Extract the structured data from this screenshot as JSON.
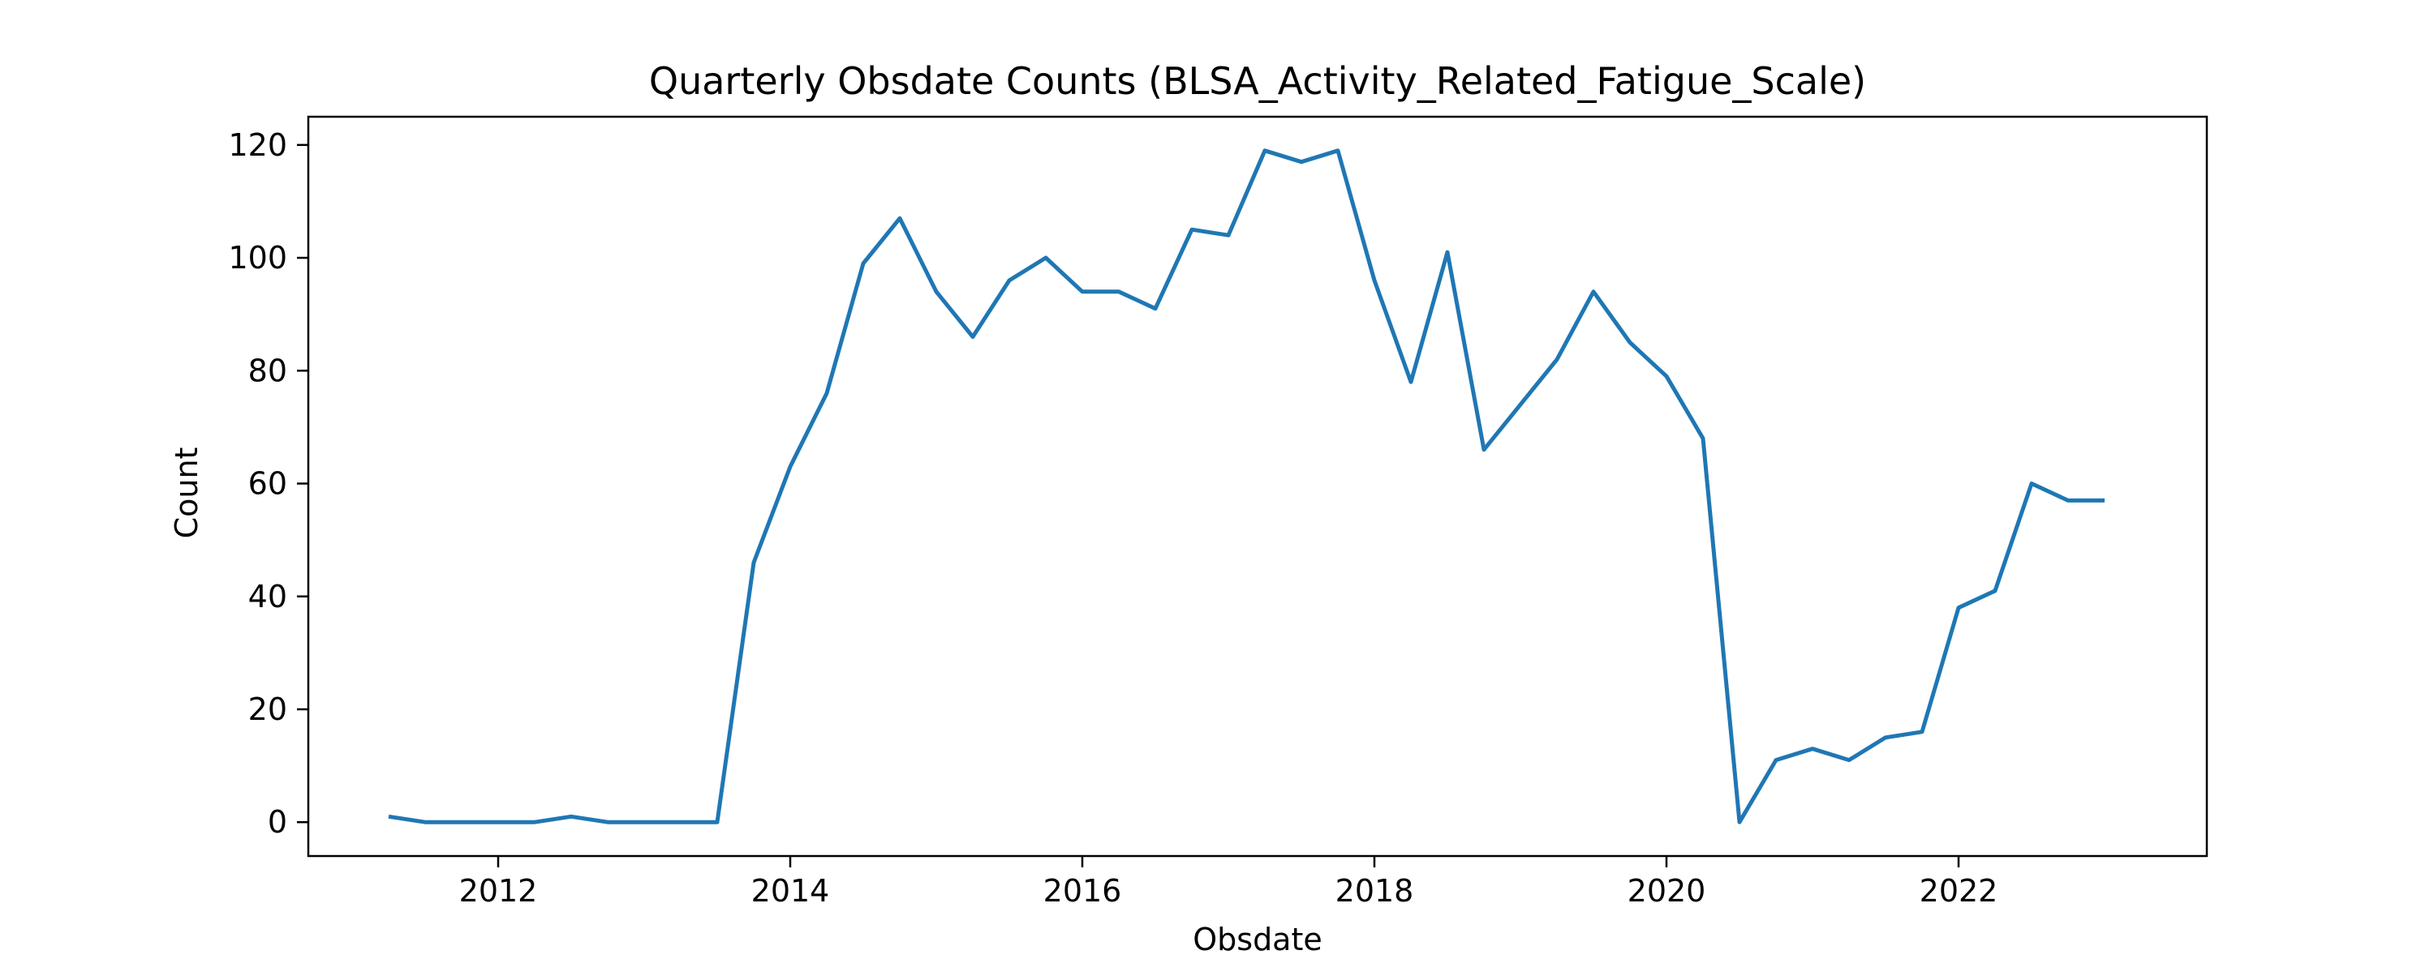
{
  "chart_data": {
    "type": "line",
    "title": "Quarterly Obsdate Counts (BLSA_Activity_Related_Fatigue_Scale)",
    "xlabel": "Obsdate",
    "ylabel": "Count",
    "x_tick_labels": [
      "2012",
      "2014",
      "2016",
      "2018",
      "2020",
      "2022"
    ],
    "y_tick_labels": [
      "0",
      "20",
      "40",
      "60",
      "80",
      "100",
      "120"
    ],
    "xlim": [
      2010.7,
      2023.7
    ],
    "ylim": [
      -6,
      125
    ],
    "grid": false,
    "legend": "none",
    "series": [
      {
        "color": "#1f77b4",
        "x": [
          "2011-04-01",
          "2011-07-01",
          "2011-10-01",
          "2012-01-01",
          "2012-04-01",
          "2012-07-01",
          "2012-10-01",
          "2013-01-01",
          "2013-04-01",
          "2013-07-01",
          "2013-10-01",
          "2014-01-01",
          "2014-04-01",
          "2014-07-01",
          "2014-10-01",
          "2015-01-01",
          "2015-04-01",
          "2015-07-01",
          "2015-10-01",
          "2016-01-01",
          "2016-04-01",
          "2016-07-01",
          "2016-10-01",
          "2017-01-01",
          "2017-04-01",
          "2017-07-01",
          "2017-10-01",
          "2018-01-01",
          "2018-04-01",
          "2018-07-01",
          "2018-10-01",
          "2019-01-01",
          "2019-04-01",
          "2019-07-01",
          "2019-10-01",
          "2020-01-01",
          "2020-04-01",
          "2020-07-01",
          "2020-10-01",
          "2021-01-01",
          "2021-04-01",
          "2021-07-01",
          "2021-10-01",
          "2022-01-01",
          "2022-04-01",
          "2022-07-01",
          "2022-10-01",
          "2023-01-01"
        ],
        "values": [
          1,
          0,
          0,
          0,
          0,
          1,
          0,
          0,
          0,
          0,
          46,
          63,
          76,
          99,
          107,
          94,
          86,
          96,
          100,
          94,
          94,
          91,
          105,
          104,
          119,
          117,
          119,
          96,
          78,
          101,
          66,
          74,
          82,
          94,
          85,
          79,
          68,
          0,
          11,
          13,
          11,
          15,
          16,
          38,
          41,
          60,
          57,
          57
        ]
      }
    ]
  }
}
